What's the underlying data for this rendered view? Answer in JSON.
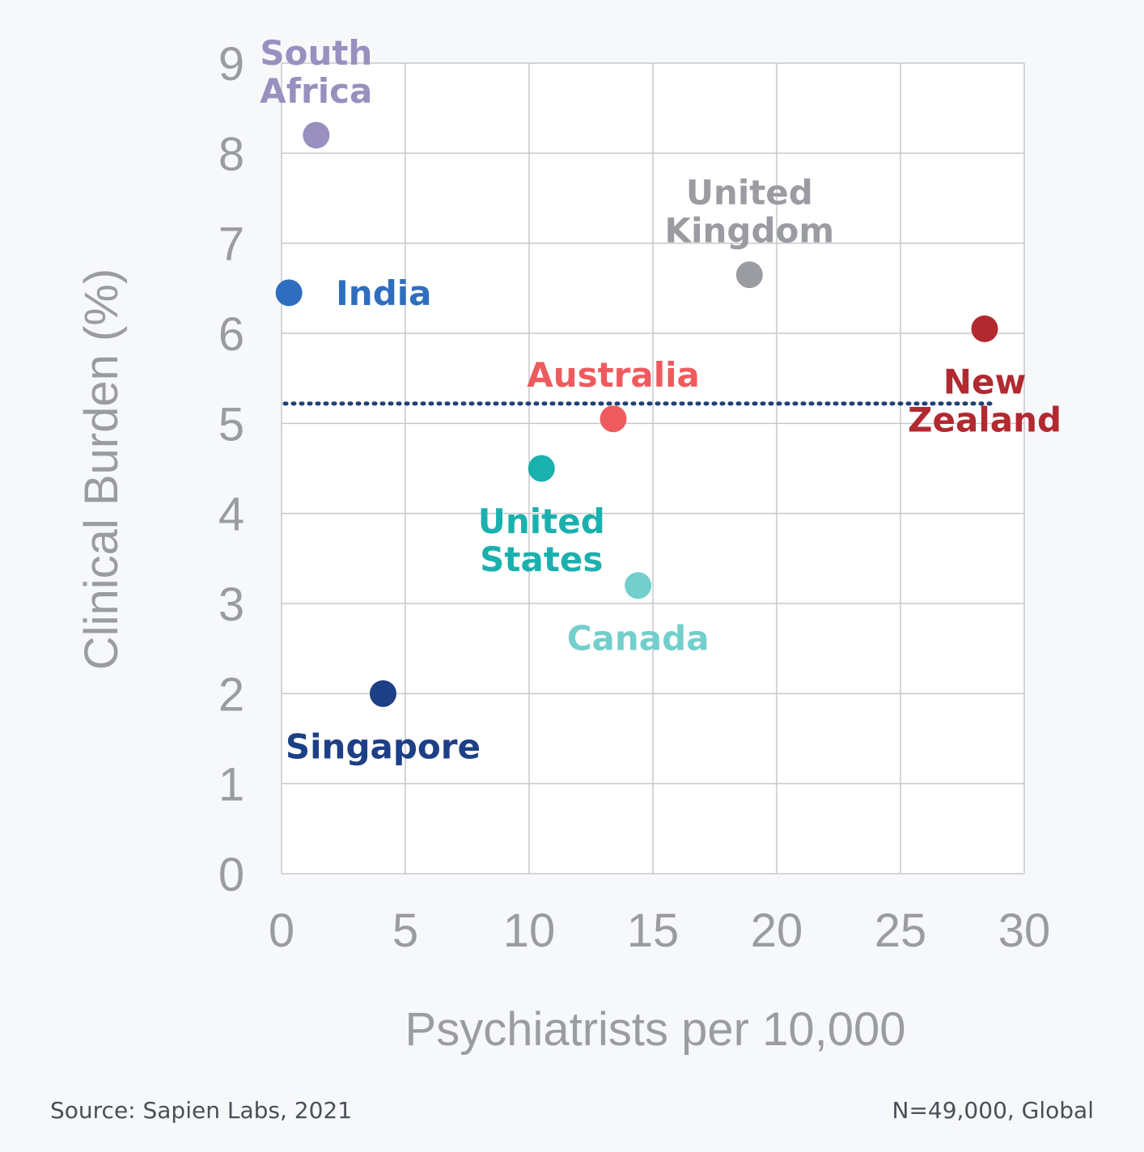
{
  "chart_data": {
    "type": "scatter",
    "xlabel": "Psychiatrists per 10,000",
    "ylabel": "Clinical Burden (%)",
    "xlim": [
      0,
      30
    ],
    "ylim": [
      0,
      9
    ],
    "x_ticks": [
      "0",
      "5",
      "10",
      "15",
      "20",
      "25",
      "30"
    ],
    "y_ticks": [
      "0",
      "1",
      "2",
      "3",
      "4",
      "5",
      "6",
      "7",
      "8",
      "9"
    ],
    "grid": true,
    "reference_line": {
      "y": 5.22,
      "x_start": 0,
      "x_end": 28.7,
      "style": "dotted",
      "color": "#1f3f7a"
    },
    "points": [
      {
        "label": [
          "South",
          "Africa"
        ],
        "x": 1.4,
        "y": 8.2,
        "color": "#9990bf",
        "label_pos": "above"
      },
      {
        "label": [
          "India"
        ],
        "x": 0.3,
        "y": 6.45,
        "color": "#2f6dbf",
        "label_pos": "right"
      },
      {
        "label": [
          "United",
          "Kingdom"
        ],
        "x": 18.9,
        "y": 6.65,
        "color": "#9a9ca1",
        "label_pos": "above"
      },
      {
        "label": [
          "New",
          "Zealand"
        ],
        "x": 28.4,
        "y": 6.05,
        "color": "#b22930",
        "label_pos": "below"
      },
      {
        "label": [
          "Australia"
        ],
        "x": 13.4,
        "y": 5.05,
        "color": "#ee5b5e",
        "label_pos": "above"
      },
      {
        "label": [
          "United",
          "States"
        ],
        "x": 10.5,
        "y": 4.5,
        "color": "#1ab0ae",
        "label_pos": "below"
      },
      {
        "label": [
          "Canada"
        ],
        "x": 14.4,
        "y": 3.2,
        "color": "#72cfcc",
        "label_pos": "below"
      },
      {
        "label": [
          "Singapore"
        ],
        "x": 4.1,
        "y": 2.0,
        "color": "#1d3f86",
        "label_pos": "below"
      }
    ]
  },
  "footer": {
    "source": "Source: Sapien Labs, 2021",
    "sample": "N=49,000, Global"
  }
}
